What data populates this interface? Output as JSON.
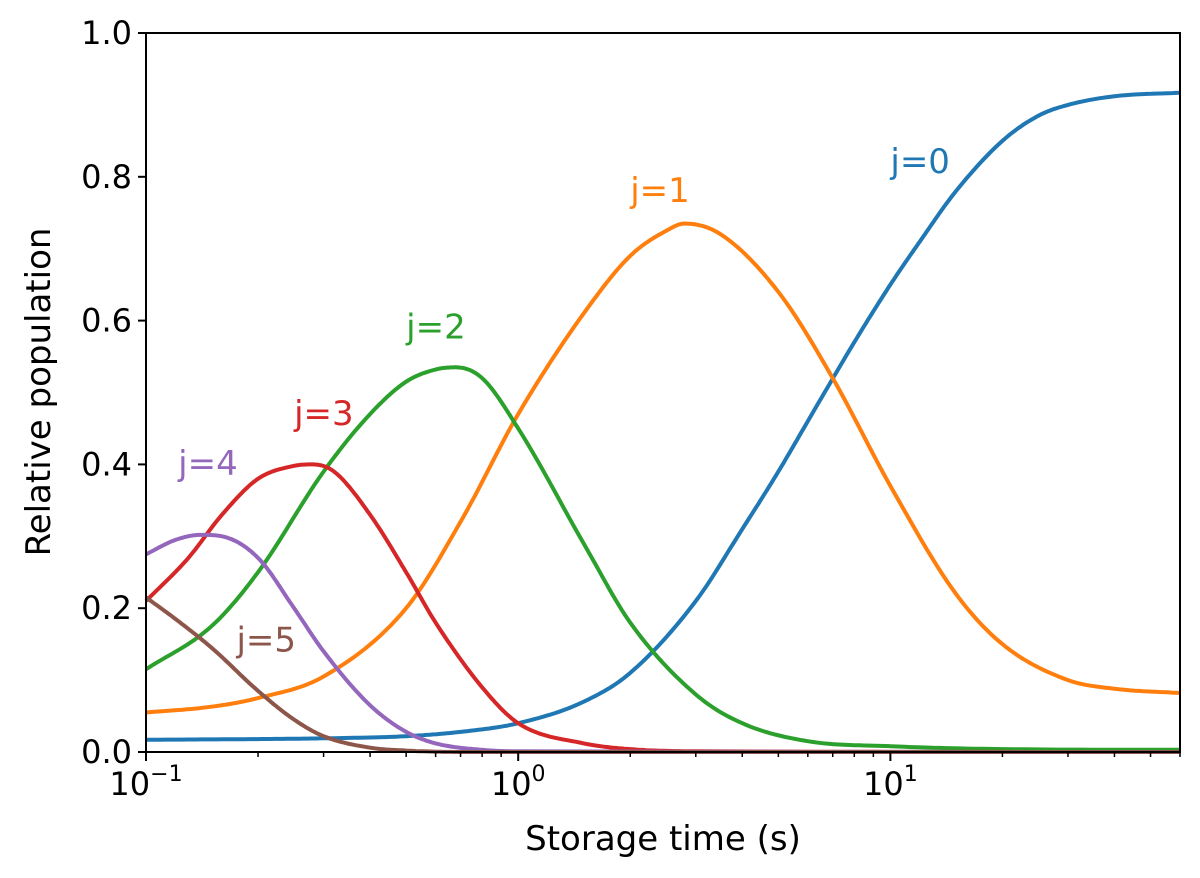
{
  "chart_data": {
    "type": "line",
    "title": "",
    "xlabel": "Storage time (s)",
    "ylabel": "Relative population",
    "xscale": "log",
    "xlim": [
      0.1,
      60
    ],
    "ylim": [
      0.0,
      1.0
    ],
    "grid": false,
    "x_tick_labels": [
      {
        "value": 0.1,
        "base": "10",
        "exp": "−1"
      },
      {
        "value": 1,
        "base": "10",
        "exp": "0"
      },
      {
        "value": 10,
        "base": "10",
        "exp": "1"
      }
    ],
    "y_tick_labels": [
      "0.0",
      "0.2",
      "0.4",
      "0.6",
      "0.8",
      "1.0"
    ],
    "y_tick_values": [
      0.0,
      0.2,
      0.4,
      0.6,
      0.8,
      1.0
    ],
    "series": [
      {
        "name": "j=0",
        "color": "#1f77b4",
        "label_at": [
          10.0,
          0.805
        ],
        "x": [
          0.1,
          0.2,
          0.3,
          0.5,
          0.7,
          1.0,
          1.5,
          2.0,
          3.0,
          4.0,
          5.0,
          6.0,
          8.0,
          10.0,
          12.0,
          15.0,
          20.0,
          25.0,
          30.0,
          40.0,
          60.0
        ],
        "y": [
          0.017,
          0.018,
          0.019,
          0.022,
          0.028,
          0.04,
          0.07,
          0.11,
          0.21,
          0.31,
          0.39,
          0.46,
          0.57,
          0.65,
          0.71,
          0.78,
          0.85,
          0.885,
          0.9,
          0.912,
          0.917
        ]
      },
      {
        "name": "j=1",
        "color": "#ff7f0e",
        "label_at": [
          2.0,
          0.765
        ],
        "x": [
          0.1,
          0.15,
          0.2,
          0.3,
          0.5,
          0.7,
          1.0,
          1.5,
          2.0,
          2.5,
          2.8,
          3.5,
          5.0,
          7.0,
          10.0,
          15.0,
          20.0,
          30.0,
          40.0,
          60.0
        ],
        "y": [
          0.055,
          0.063,
          0.075,
          0.105,
          0.2,
          0.32,
          0.47,
          0.61,
          0.69,
          0.725,
          0.735,
          0.72,
          0.64,
          0.52,
          0.37,
          0.22,
          0.15,
          0.1,
          0.088,
          0.082
        ]
      },
      {
        "name": "j=2",
        "color": "#2ca02c",
        "label_at": [
          0.5,
          0.575
        ],
        "x": [
          0.1,
          0.15,
          0.2,
          0.3,
          0.4,
          0.5,
          0.6,
          0.68,
          0.8,
          1.0,
          1.5,
          2.0,
          3.0,
          4.0,
          6.0,
          10.0,
          20.0,
          60.0
        ],
        "y": [
          0.115,
          0.175,
          0.25,
          0.39,
          0.47,
          0.515,
          0.532,
          0.535,
          0.52,
          0.45,
          0.29,
          0.18,
          0.08,
          0.04,
          0.015,
          0.008,
          0.004,
          0.003
        ]
      },
      {
        "name": "j=3",
        "color": "#d62728",
        "label_at": [
          0.25,
          0.455
        ],
        "x": [
          0.1,
          0.13,
          0.16,
          0.2,
          0.25,
          0.28,
          0.32,
          0.4,
          0.5,
          0.6,
          0.8,
          1.0,
          1.5,
          2.0,
          3.0,
          60.0
        ],
        "y": [
          0.21,
          0.27,
          0.33,
          0.38,
          0.398,
          0.4,
          0.39,
          0.33,
          0.25,
          0.18,
          0.09,
          0.04,
          0.012,
          0.004,
          0.001,
          0.0
        ]
      },
      {
        "name": "j=4",
        "color": "#9467bd",
        "label_at": [
          0.122,
          0.385
        ],
        "x": [
          0.1,
          0.12,
          0.14,
          0.16,
          0.2,
          0.25,
          0.3,
          0.4,
          0.5,
          0.6,
          0.8,
          1.0,
          60.0
        ],
        "y": [
          0.275,
          0.295,
          0.302,
          0.3,
          0.27,
          0.2,
          0.14,
          0.065,
          0.028,
          0.012,
          0.003,
          0.001,
          0.0
        ]
      },
      {
        "name": "j=5",
        "color": "#8c564b",
        "label_at": [
          0.175,
          0.14
        ],
        "x": [
          0.1,
          0.12,
          0.15,
          0.2,
          0.25,
          0.3,
          0.4,
          0.5,
          0.7,
          60.0
        ],
        "y": [
          0.215,
          0.185,
          0.145,
          0.085,
          0.045,
          0.022,
          0.006,
          0.002,
          0.0,
          0.0
        ]
      }
    ]
  }
}
